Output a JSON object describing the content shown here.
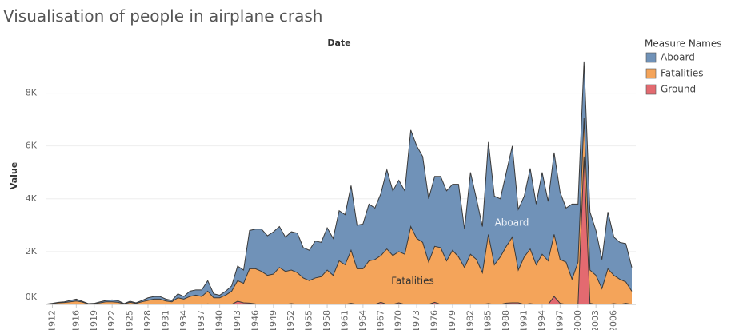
{
  "chart_data": {
    "type": "area",
    "title": "Visualisation of people in airplane crash",
    "x_header": "Date",
    "y_label": "Value",
    "legend_title": "Measure Names",
    "annotations": [
      "Aboard",
      "Fatalities"
    ],
    "x": [
      1911,
      1912,
      1913,
      1914,
      1915,
      1916,
      1917,
      1918,
      1919,
      1920,
      1921,
      1922,
      1923,
      1924,
      1925,
      1926,
      1927,
      1928,
      1929,
      1930,
      1931,
      1932,
      1933,
      1934,
      1935,
      1936,
      1937,
      1938,
      1939,
      1940,
      1941,
      1942,
      1943,
      1944,
      1945,
      1946,
      1947,
      1948,
      1949,
      1950,
      1951,
      1952,
      1953,
      1954,
      1955,
      1956,
      1957,
      1958,
      1959,
      1960,
      1961,
      1962,
      1963,
      1964,
      1965,
      1966,
      1967,
      1968,
      1969,
      1970,
      1971,
      1972,
      1973,
      1974,
      1975,
      1976,
      1977,
      1978,
      1979,
      1980,
      1981,
      1982,
      1983,
      1984,
      1985,
      1986,
      1987,
      1988,
      1989,
      1990,
      1991,
      1992,
      1993,
      1994,
      1995,
      1996,
      1997,
      1998,
      1999,
      2000,
      2001,
      2002,
      2003,
      2004,
      2005,
      2006,
      2007,
      2008,
      2009
    ],
    "series": [
      {
        "name": "Aboard",
        "color": "#7092b8",
        "values": [
          10,
          40,
          80,
          100,
          150,
          200,
          120,
          30,
          40,
          100,
          150,
          170,
          140,
          30,
          120,
          60,
          150,
          250,
          300,
          300,
          200,
          150,
          400,
          300,
          500,
          550,
          550,
          900,
          400,
          350,
          500,
          700,
          1450,
          1300,
          2800,
          2850,
          2850,
          2600,
          2750,
          2950,
          2550,
          2750,
          2700,
          2150,
          2050,
          2400,
          2350,
          2900,
          2500,
          3550,
          3400,
          4500,
          3000,
          3050,
          3800,
          3650,
          4200,
          5100,
          4300,
          4700,
          4300,
          6600,
          6000,
          5600,
          4000,
          4850,
          4850,
          4300,
          4550,
          4550,
          2850,
          5000,
          4000,
          2950,
          6150,
          4100,
          4000,
          5000,
          6000,
          3600,
          4100,
          5150,
          3800,
          5000,
          3900,
          5750,
          4250,
          3650,
          3800,
          3800,
          9200,
          3500,
          2800,
          1700,
          3500,
          2550,
          2350,
          2300,
          1400
        ]
      },
      {
        "name": "Fatalities",
        "color": "#f4a45a",
        "values": [
          5,
          30,
          60,
          70,
          100,
          130,
          90,
          20,
          30,
          60,
          100,
          100,
          80,
          20,
          80,
          40,
          100,
          150,
          200,
          200,
          130,
          100,
          250,
          200,
          300,
          350,
          300,
          500,
          250,
          250,
          350,
          500,
          900,
          800,
          1350,
          1350,
          1250,
          1100,
          1150,
          1400,
          1250,
          1300,
          1200,
          1000,
          900,
          1000,
          1050,
          1300,
          1100,
          1650,
          1500,
          2050,
          1350,
          1350,
          1650,
          1700,
          1850,
          2100,
          1850,
          2000,
          1900,
          2950,
          2500,
          2350,
          1600,
          2200,
          2150,
          1650,
          2050,
          1800,
          1400,
          1900,
          1700,
          1200,
          2650,
          1500,
          1800,
          2200,
          2550,
          1300,
          1800,
          2100,
          1500,
          1900,
          1650,
          2650,
          1700,
          1600,
          950,
          1600,
          7050,
          1300,
          1100,
          600,
          1350,
          1100,
          950,
          850,
          500
        ]
      },
      {
        "name": "Ground",
        "color": "#e36a70",
        "values": [
          0,
          0,
          0,
          0,
          0,
          0,
          0,
          0,
          0,
          0,
          0,
          0,
          0,
          0,
          0,
          0,
          0,
          0,
          0,
          0,
          0,
          0,
          0,
          0,
          0,
          0,
          0,
          20,
          0,
          0,
          0,
          0,
          120,
          60,
          50,
          20,
          0,
          0,
          0,
          0,
          0,
          30,
          0,
          0,
          0,
          10,
          0,
          0,
          0,
          0,
          0,
          40,
          0,
          0,
          0,
          0,
          80,
          0,
          0,
          60,
          0,
          0,
          0,
          0,
          0,
          80,
          0,
          0,
          0,
          0,
          0,
          0,
          0,
          0,
          30,
          0,
          0,
          50,
          60,
          60,
          0,
          30,
          0,
          0,
          0,
          300,
          40,
          0,
          0,
          0,
          5600,
          40,
          0,
          0,
          0,
          30,
          0,
          40,
          0
        ]
      }
    ],
    "xlim": [
      1911,
      2009
    ],
    "xticks": [
      1912,
      1916,
      1919,
      1922,
      1925,
      1928,
      1931,
      1934,
      1937,
      1940,
      1943,
      1946,
      1949,
      1952,
      1955,
      1958,
      1961,
      1964,
      1967,
      1970,
      1973,
      1976,
      1979,
      1982,
      1985,
      1988,
      1991,
      1994,
      1997,
      2000,
      2003,
      2006
    ],
    "ylim": [
      0,
      9500
    ],
    "yticks": [
      {
        "value": 0,
        "label": "0K"
      },
      {
        "value": 2000,
        "label": "2K"
      },
      {
        "value": 4000,
        "label": "4K"
      },
      {
        "value": 6000,
        "label": "6K"
      },
      {
        "value": 8000,
        "label": "8K"
      }
    ],
    "grid": true
  }
}
